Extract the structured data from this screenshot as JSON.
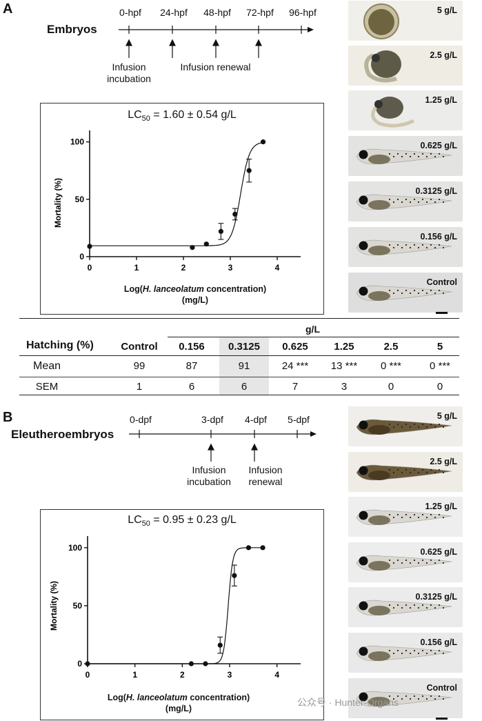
{
  "panelA": {
    "letter": "A",
    "timeline": {
      "title": "Embryos",
      "ticks": [
        "0-hpf",
        "24-hpf",
        "48-hpf",
        "72-hpf",
        "96-hpf"
      ],
      "annotations": [
        "Infusion\nincubation",
        "Infusion renewal"
      ]
    },
    "chart": {
      "lc50_prefix": "LC",
      "lc50_sub": "50",
      "lc50_value": " = 1.60 ± 0.54 g/L",
      "ylabel": "Mortality (%)",
      "xlabel_pre": "Log(",
      "xlabel_italic": "H. lanceolatum",
      "xlabel_post": " concentration)",
      "xlabel_unit": "(mg/L)"
    },
    "images": [
      "5 g/L",
      "2.5 g/L",
      "1.25 g/L",
      "0.625 g/L",
      "0.3125 g/L",
      "0.156 g/L",
      "Control"
    ]
  },
  "table": {
    "unit_header": "g/L",
    "row_header": "Hatching (%)",
    "columns": [
      "Control",
      "0.156",
      "0.3125",
      "0.625",
      "1.25",
      "2.5",
      "5"
    ],
    "rows": [
      {
        "label": "Mean",
        "values": [
          "99",
          "87",
          "91",
          "24 ***",
          "13 ***",
          "0 ***",
          "0 ***"
        ]
      },
      {
        "label": "SEM",
        "values": [
          "1",
          "6",
          "6",
          "7",
          "3",
          "0",
          "0"
        ]
      }
    ],
    "highlight_color": "#e6e6e6"
  },
  "panelB": {
    "letter": "B",
    "timeline": {
      "title": "Eleutheroembryos",
      "ticks": [
        "0-dpf",
        "3-dpf",
        "4-dpf",
        "5-dpf"
      ],
      "annotations": [
        "Infusion\nincubation",
        "Infusion\nrenewal"
      ]
    },
    "chart": {
      "lc50_prefix": "LC",
      "lc50_sub": "50",
      "lc50_value": " = 0.95 ± 0.23 g/L",
      "ylabel": "Mortality (%)",
      "xlabel_pre": "Log(",
      "xlabel_italic": "H. lanceolatum",
      "xlabel_post": " concentration)",
      "xlabel_unit": "(mg/L)"
    },
    "images": [
      "5 g/L",
      "2.5 g/L",
      "1.25 g/L",
      "0.625 g/L",
      "0.3125 g/L",
      "0.156 g/L",
      "Control"
    ]
  },
  "watermark": "公众号 · Hunter-Organs",
  "chart_data": [
    {
      "type": "scatter",
      "title": "LC50 = 1.60 ± 0.54 g/L",
      "xlabel": "Log(H. lanceolatum concentration) (mg/L)",
      "ylabel": "Mortality (%)",
      "xlim": [
        0,
        4.5
      ],
      "ylim": [
        0,
        110
      ],
      "xticks": [
        0,
        1,
        2,
        3,
        4
      ],
      "yticks": [
        0,
        50,
        100
      ],
      "points": [
        {
          "x": 0.0,
          "y": 9,
          "err": 0
        },
        {
          "x": 2.19,
          "y": 8,
          "err": 0
        },
        {
          "x": 2.49,
          "y": 11,
          "err": 0
        },
        {
          "x": 2.8,
          "y": 22,
          "err": 7
        },
        {
          "x": 3.1,
          "y": 37,
          "err": 5
        },
        {
          "x": 3.4,
          "y": 75,
          "err": 10
        },
        {
          "x": 3.7,
          "y": 100,
          "err": 0
        }
      ],
      "fit": {
        "bottom": 9.5,
        "top": 100,
        "logEC50": 3.22,
        "hill": 4.6
      }
    },
    {
      "type": "scatter",
      "title": "LC50 = 0.95 ± 0.23 g/L",
      "xlabel": "Log(H. lanceolatum concentration) (mg/L)",
      "ylabel": "Mortality (%)",
      "xlim": [
        0,
        4.5
      ],
      "ylim": [
        0,
        110
      ],
      "xticks": [
        0,
        1,
        2,
        3,
        4
      ],
      "yticks": [
        0,
        50,
        100
      ],
      "points": [
        {
          "x": 0.0,
          "y": 0,
          "err": 0
        },
        {
          "x": 2.19,
          "y": 0,
          "err": 0
        },
        {
          "x": 2.49,
          "y": 0,
          "err": 0
        },
        {
          "x": 2.8,
          "y": 16,
          "err": 7
        },
        {
          "x": 3.1,
          "y": 76,
          "err": 9
        },
        {
          "x": 3.4,
          "y": 100,
          "err": 0
        },
        {
          "x": 3.7,
          "y": 100,
          "err": 0
        }
      ],
      "fit": {
        "bottom": 0,
        "top": 100,
        "logEC50": 2.97,
        "hill": 9
      }
    }
  ]
}
